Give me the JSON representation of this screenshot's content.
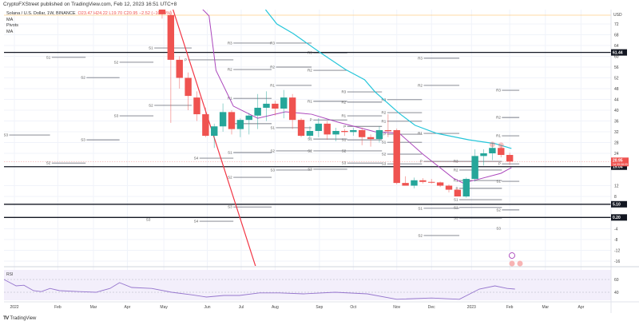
{
  "header": {
    "published": "CryptoFXStreet published on TradingView.com, Feb 12, 2023 16:51 UTC+8"
  },
  "legend": {
    "symbol": "Solana / U.S. Dollar, 1W, BINANCE",
    "ohlc": "O23.47 H24.22 L19.70 C20.95 −2.52 (−10.74%)",
    "indicators": [
      "MA",
      "Pivots",
      "MA"
    ]
  },
  "brand": {
    "name": "TradingView",
    "logo": "TV"
  },
  "colors": {
    "up": "#26a69a",
    "down": "#ef5350",
    "ma_fast": "#ab47bc",
    "ma_slow": "#26c6da",
    "trend": "#f23645",
    "rsi": "#9575cd"
  },
  "chart_data": {
    "type": "candlestick",
    "title": "Solana / U.S. Dollar, 1W, BINANCE",
    "currency": "USD",
    "x_unit": "weeks since 2022-01-03",
    "ylim": [
      -18,
      82
    ],
    "price_ticks": [
      72,
      68,
      64,
      60,
      56,
      52,
      48,
      44,
      40,
      36,
      32,
      28,
      24,
      12,
      8,
      -4,
      -8,
      -12,
      -16
    ],
    "time_ticks": [
      {
        "w": 0,
        "label": "2022"
      },
      {
        "w": 5,
        "label": "Feb"
      },
      {
        "w": 9.1,
        "label": "Mar"
      },
      {
        "w": 13,
        "label": "Apr"
      },
      {
        "w": 17.2,
        "label": "May"
      },
      {
        "w": 22.2,
        "label": "Jun"
      },
      {
        "w": 26.1,
        "label": "Jul"
      },
      {
        "w": 30,
        "label": "Aug"
      },
      {
        "w": 35.1,
        "label": "Sep"
      },
      {
        "w": 39,
        "label": "Oct"
      },
      {
        "w": 44,
        "label": "Nov"
      },
      {
        "w": 48,
        "label": "Dec"
      },
      {
        "w": 52.6,
        "label": "2023"
      },
      {
        "w": 57,
        "label": "Feb"
      },
      {
        "w": 61.1,
        "label": "Mar"
      },
      {
        "w": 65.2,
        "label": "Apr"
      }
    ],
    "candles": [
      {
        "w": 17,
        "o": 85,
        "h": 88,
        "l": 74,
        "c": 75.6
      },
      {
        "w": 18,
        "o": 75.3,
        "h": 77,
        "l": 35.3,
        "c": 58.7
      },
      {
        "w": 19,
        "o": 58.7,
        "h": 60,
        "l": 48,
        "c": 52
      },
      {
        "w": 20,
        "o": 52,
        "h": 54,
        "l": 40,
        "c": 45.3
      },
      {
        "w": 21,
        "o": 44.7,
        "h": 47,
        "l": 36,
        "c": 38.5
      },
      {
        "w": 22,
        "o": 38.5,
        "h": 41,
        "l": 30,
        "c": 30.5
      },
      {
        "w": 23,
        "o": 30.5,
        "h": 35,
        "l": 26,
        "c": 34
      },
      {
        "w": 24,
        "o": 34,
        "h": 42.5,
        "l": 32,
        "c": 39.3
      },
      {
        "w": 25,
        "o": 39.3,
        "h": 40,
        "l": 31,
        "c": 33
      },
      {
        "w": 26,
        "o": 33,
        "h": 37,
        "l": 30,
        "c": 36.4
      },
      {
        "w": 27,
        "o": 36.4,
        "h": 39,
        "l": 31,
        "c": 38
      },
      {
        "w": 28,
        "o": 38,
        "h": 46,
        "l": 33,
        "c": 40.9
      },
      {
        "w": 29,
        "o": 40.9,
        "h": 47,
        "l": 36,
        "c": 42.4
      },
      {
        "w": 30,
        "o": 42.4,
        "h": 43.5,
        "l": 38,
        "c": 40.6
      },
      {
        "w": 31,
        "o": 40.6,
        "h": 47.5,
        "l": 37,
        "c": 44.7
      },
      {
        "w": 32,
        "o": 44.7,
        "h": 46,
        "l": 33,
        "c": 36.4
      },
      {
        "w": 33,
        "o": 36.4,
        "h": 37,
        "l": 30,
        "c": 30.5
      },
      {
        "w": 34,
        "o": 30.5,
        "h": 34,
        "l": 29,
        "c": 32.3
      },
      {
        "w": 35,
        "o": 32.3,
        "h": 37,
        "l": 30,
        "c": 35
      },
      {
        "w": 36,
        "o": 35,
        "h": 36,
        "l": 29,
        "c": 31
      },
      {
        "w": 37,
        "o": 31,
        "h": 33.5,
        "l": 28.5,
        "c": 32.3
      },
      {
        "w": 38,
        "o": 32.3,
        "h": 33,
        "l": 30.5,
        "c": 31.9
      },
      {
        "w": 39,
        "o": 31.9,
        "h": 33.5,
        "l": 30.5,
        "c": 32.6
      },
      {
        "w": 40,
        "o": 32.6,
        "h": 33.5,
        "l": 27,
        "c": 30
      },
      {
        "w": 41,
        "o": 30,
        "h": 31,
        "l": 26.5,
        "c": 29.3
      },
      {
        "w": 42,
        "o": 29.3,
        "h": 34,
        "l": 28,
        "c": 32.6
      },
      {
        "w": 43,
        "o": 32.6,
        "h": 38.5,
        "l": 30,
        "c": 32.2
      },
      {
        "w": 44,
        "o": 32.6,
        "h": 33.2,
        "l": 12.5,
        "c": 13
      },
      {
        "w": 45,
        "o": 13,
        "h": 15.5,
        "l": 12,
        "c": 12
      },
      {
        "w": 46,
        "o": 12,
        "h": 15,
        "l": 11,
        "c": 14
      },
      {
        "w": 47,
        "o": 14,
        "h": 14.8,
        "l": 12.8,
        "c": 13.4
      },
      {
        "w": 48,
        "o": 13.4,
        "h": 14.5,
        "l": 12.8,
        "c": 13.2
      },
      {
        "w": 49,
        "o": 13.2,
        "h": 13.5,
        "l": 11.5,
        "c": 12
      },
      {
        "w": 50,
        "o": 12,
        "h": 12.5,
        "l": 9.5,
        "c": 10.5
      },
      {
        "w": 51,
        "o": 10.5,
        "h": 11,
        "l": 8,
        "c": 8
      },
      {
        "w": 52,
        "o": 8,
        "h": 15,
        "l": 7.5,
        "c": 14.5
      },
      {
        "w": 53,
        "o": 14.5,
        "h": 25.5,
        "l": 13.5,
        "c": 23
      },
      {
        "w": 54,
        "o": 23,
        "h": 25.5,
        "l": 19.5,
        "c": 24
      },
      {
        "w": 55,
        "o": 24,
        "h": 28,
        "l": 21.5,
        "c": 26
      },
      {
        "w": 56,
        "o": 26,
        "h": 27,
        "l": 22.5,
        "c": 23.4
      },
      {
        "w": 57,
        "o": 23.4,
        "h": 24.2,
        "l": 19.7,
        "c": 20.95
      }
    ],
    "ma_slow": [
      [
        28.9,
        77.3
      ],
      [
        30.2,
        72
      ],
      [
        32.1,
        68.4
      ],
      [
        35.1,
        61.6
      ],
      [
        38.1,
        55.1
      ],
      [
        40.3,
        51.3
      ],
      [
        41.5,
        46.8
      ],
      [
        44.3,
        38.8
      ],
      [
        46.1,
        34.4
      ],
      [
        48.6,
        31.4
      ],
      [
        52.3,
        29
      ],
      [
        55.3,
        27.6
      ],
      [
        57.2,
        25.8
      ]
    ],
    "ma_fast": [
      [
        20.6,
        80.9
      ],
      [
        22.4,
        75
      ],
      [
        23.2,
        54.8
      ],
      [
        25.2,
        41.5
      ],
      [
        28,
        37
      ],
      [
        31.2,
        39.4
      ],
      [
        34.2,
        38.5
      ],
      [
        37.2,
        35.6
      ],
      [
        41.5,
        32
      ],
      [
        44.3,
        31.4
      ],
      [
        47,
        23.7
      ],
      [
        50.5,
        14.8
      ],
      [
        51.6,
        13
      ],
      [
        53.2,
        14.2
      ],
      [
        56,
        16.6
      ],
      [
        57.2,
        18.7
      ]
    ],
    "trendline": [
      [
        17.9,
        80.9
      ],
      [
        27.8,
        -18.4
      ]
    ],
    "levels": [
      {
        "price": 61.44,
        "label": "61.44"
      },
      {
        "price": 19.04,
        "label": "19.04"
      },
      {
        "price": 5.1,
        "label": "5.10"
      },
      {
        "price": 0.2,
        "label": "0.20"
      }
    ],
    "last_price": {
      "price": 20.95,
      "label": "20.95",
      "countdown": "1d 09:08:05"
    },
    "pivots": [
      {
        "l": "S3",
        "from": -0.6,
        "to": 4.1,
        "p": 30.8
      },
      {
        "l": "S1",
        "from": 4.3,
        "to": 8.2,
        "p": 59.6
      },
      {
        "l": "S2",
        "from": 4.3,
        "to": 8.2,
        "p": 20.4
      },
      {
        "l": "S2",
        "from": 8.3,
        "to": 12.1,
        "p": 52.1
      },
      {
        "l": "S3",
        "from": 8.3,
        "to": 12.1,
        "p": 29
      },
      {
        "l": "S2",
        "from": 12.1,
        "to": 16,
        "p": 57.8
      },
      {
        "l": "S3",
        "from": 12.1,
        "to": 16,
        "p": 37.9
      },
      {
        "l": "S1",
        "from": 16.1,
        "to": 20.4,
        "p": 63.1
      },
      {
        "l": "S2",
        "from": 16.1,
        "to": 20.4,
        "p": 41.8
      },
      {
        "l": "S3",
        "from": 15.8,
        "to": 15.8,
        "p": -0.6
      },
      {
        "l": "P",
        "from": 20,
        "to": 25.2,
        "p": 58.7
      },
      {
        "l": "S4",
        "from": 21.3,
        "to": 25.2,
        "p": 22.2
      },
      {
        "l": "S4",
        "from": 21.3,
        "to": 25.2,
        "p": -1.2
      },
      {
        "l": "R3",
        "from": 25.2,
        "to": 29.6,
        "p": 64.9
      },
      {
        "l": "R2",
        "from": 25.2,
        "to": 29.6,
        "p": 55.1
      },
      {
        "l": "R1",
        "from": 25.2,
        "to": 29.6,
        "p": 44.4
      },
      {
        "l": "P",
        "from": 25.2,
        "to": 29.6,
        "p": 35
      },
      {
        "l": "S1",
        "from": 25.2,
        "to": 29.6,
        "p": 24.3
      },
      {
        "l": "S2",
        "from": 25.2,
        "to": 29.6,
        "p": 15.1
      },
      {
        "l": "S3",
        "from": 25.2,
        "to": 29.6,
        "p": 4.1
      },
      {
        "l": "R3",
        "from": 30.1,
        "to": 34.2,
        "p": 64.9
      },
      {
        "l": "R2",
        "from": 30.1,
        "to": 34.2,
        "p": 56
      },
      {
        "l": "R1",
        "from": 30.1,
        "to": 34.2,
        "p": 49.2
      },
      {
        "l": "S1",
        "from": 30.1,
        "to": 34.2,
        "p": 33.5
      },
      {
        "l": "S2",
        "from": 30.1,
        "to": 34.2,
        "p": 24.9
      },
      {
        "l": "S3",
        "from": 30.1,
        "to": 34.2,
        "p": 17.8
      },
      {
        "l": "R3",
        "from": 34.4,
        "to": 38.3,
        "p": 61.3
      },
      {
        "l": "R2",
        "from": 34.4,
        "to": 38.3,
        "p": 54.8
      },
      {
        "l": "R1",
        "from": 34.4,
        "to": 38.3,
        "p": 43.3
      },
      {
        "l": "P",
        "from": 34.4,
        "to": 38.3,
        "p": 36.4
      },
      {
        "l": "S1",
        "from": 34.4,
        "to": 38.3,
        "p": 29.3
      },
      {
        "l": "S2",
        "from": 34.4,
        "to": 38.3,
        "p": 24.9
      },
      {
        "l": "S3",
        "from": 34.4,
        "to": 38.3,
        "p": 18.1
      },
      {
        "l": "R3",
        "from": 38.3,
        "to": 42.3,
        "p": 46.8
      },
      {
        "l": "R2",
        "from": 38.3,
        "to": 42.3,
        "p": 43
      },
      {
        "l": "R1",
        "from": 38.3,
        "to": 42.3,
        "p": 37.9
      },
      {
        "l": "P",
        "from": 38.3,
        "to": 42.3,
        "p": 34
      },
      {
        "l": "S1",
        "from": 38.3,
        "to": 42.3,
        "p": 29
      },
      {
        "l": "S2",
        "from": 38.3,
        "to": 42.3,
        "p": 24.9
      },
      {
        "l": "S3",
        "from": 38.3,
        "to": 42.3,
        "p": 20.4
      },
      {
        "l": "R3",
        "from": 42.9,
        "to": 46.9,
        "p": 43.9
      },
      {
        "l": "R2",
        "from": 42.9,
        "to": 46.9,
        "p": 39.1
      },
      {
        "l": "R1",
        "from": 42.9,
        "to": 46.9,
        "p": 35.9
      },
      {
        "l": "P",
        "from": 42.9,
        "to": 46.9,
        "p": 31.1
      },
      {
        "l": "S1",
        "from": 42.9,
        "to": 46.9,
        "p": 28.1
      },
      {
        "l": "S2",
        "from": 42.9,
        "to": 46.9,
        "p": 23.7
      },
      {
        "l": "S3",
        "from": 42.9,
        "to": 46.9,
        "p": 20.1
      },
      {
        "l": "R3",
        "from": 47.1,
        "to": 51.2,
        "p": 59.3
      },
      {
        "l": "R2",
        "from": 47.1,
        "to": 51.2,
        "p": 49.2
      },
      {
        "l": "R1",
        "from": 47.1,
        "to": 51.2,
        "p": 31.4
      },
      {
        "l": "P",
        "from": 47.1,
        "to": 51.2,
        "p": 21
      },
      {
        "l": "S1",
        "from": 47.1,
        "to": 51.2,
        "p": 3.6
      },
      {
        "l": "S2",
        "from": 47.1,
        "to": 51.2,
        "p": -6.5
      },
      {
        "l": "R3",
        "from": 51.2,
        "to": 56.1,
        "p": 21
      },
      {
        "l": "R2",
        "from": 51.2,
        "to": 56.1,
        "p": 17.8
      },
      {
        "l": "R1",
        "from": 51.2,
        "to": 56.1,
        "p": 13.9
      },
      {
        "l": "P",
        "from": 51.2,
        "to": 56.1,
        "p": 11
      },
      {
        "l": "S1",
        "from": 51.2,
        "to": 56.1,
        "p": 6.8
      },
      {
        "l": "S2",
        "from": 51.2,
        "to": 56.1,
        "p": 3.9
      },
      {
        "l": "S3",
        "from": 51.2,
        "to": 56.1,
        "p": 0
      },
      {
        "l": "R3",
        "from": 56.1,
        "to": 58.1,
        "p": 47.4
      },
      {
        "l": "R2",
        "from": 56.1,
        "to": 58.1,
        "p": 37.3
      },
      {
        "l": "R1",
        "from": 56.1,
        "to": 58.1,
        "p": 30.5
      },
      {
        "l": "P",
        "from": 56.1,
        "to": 58.1,
        "p": 20.1
      },
      {
        "l": "S1",
        "from": 56.1,
        "to": 58.1,
        "p": 13.6
      },
      {
        "l": "S2",
        "from": 56.1,
        "to": 58.1,
        "p": 3
      },
      {
        "l": "S3",
        "from": 56.1,
        "to": 56.1,
        "p": -3.9
      }
    ],
    "rsi": {
      "label": "RSI",
      "ticks": [
        60,
        40
      ],
      "values": [
        [
          -1.2,
          60
        ],
        [
          0.2,
          50
        ],
        [
          1.1,
          51
        ],
        [
          2.2,
          42.5
        ],
        [
          3.1,
          41
        ],
        [
          4.1,
          46
        ],
        [
          5.2,
          42.5
        ],
        [
          7.5,
          41
        ],
        [
          9.4,
          40
        ],
        [
          11,
          46
        ],
        [
          12.1,
          55
        ],
        [
          13.5,
          47.5
        ],
        [
          15.8,
          46
        ],
        [
          18.1,
          40
        ],
        [
          20.4,
          36
        ],
        [
          22.1,
          32.5
        ],
        [
          24.1,
          35
        ],
        [
          25.9,
          35
        ],
        [
          28.2,
          39
        ],
        [
          30.5,
          39
        ],
        [
          33.3,
          37.5
        ],
        [
          36.9,
          40
        ],
        [
          40.6,
          37.5
        ],
        [
          44,
          29
        ],
        [
          48,
          31
        ],
        [
          51.2,
          29
        ],
        [
          53.5,
          45
        ],
        [
          55.3,
          50
        ],
        [
          56.7,
          46
        ],
        [
          57.6,
          45
        ]
      ]
    }
  }
}
